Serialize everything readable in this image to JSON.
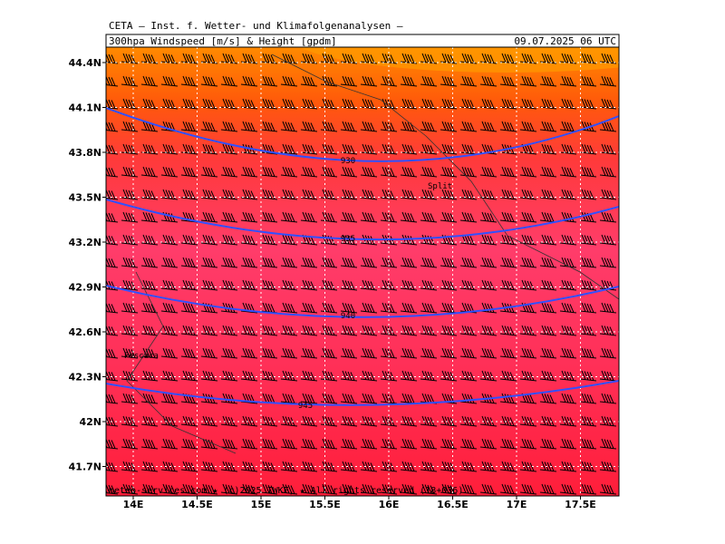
{
  "header": {
    "line1": "CETA – Inst. f. Wetter- und Klimafolgenanalysen –",
    "product": "300hpa Windspeed [m/s] & Height [gpdm]",
    "valid": "09.07.2025 06 UTC"
  },
  "lat_labels": [
    "44.4N",
    "44.1N",
    "43.8N",
    "43.5N",
    "43.2N",
    "42.9N",
    "42.6N",
    "42.3N",
    "42N",
    "41.7N"
  ],
  "lon_labels": [
    "14E",
    "14.5E",
    "15E",
    "15.5E",
    "16E",
    "16.5E",
    "17E",
    "17.5E"
  ],
  "contours": [
    "930",
    "935",
    "940",
    "945"
  ],
  "places": [
    "Pescara",
    "Split"
  ],
  "footer": "meteo-services.com ★ (c)2025 IWKF, ★ All rights reserved (18+036)"
}
